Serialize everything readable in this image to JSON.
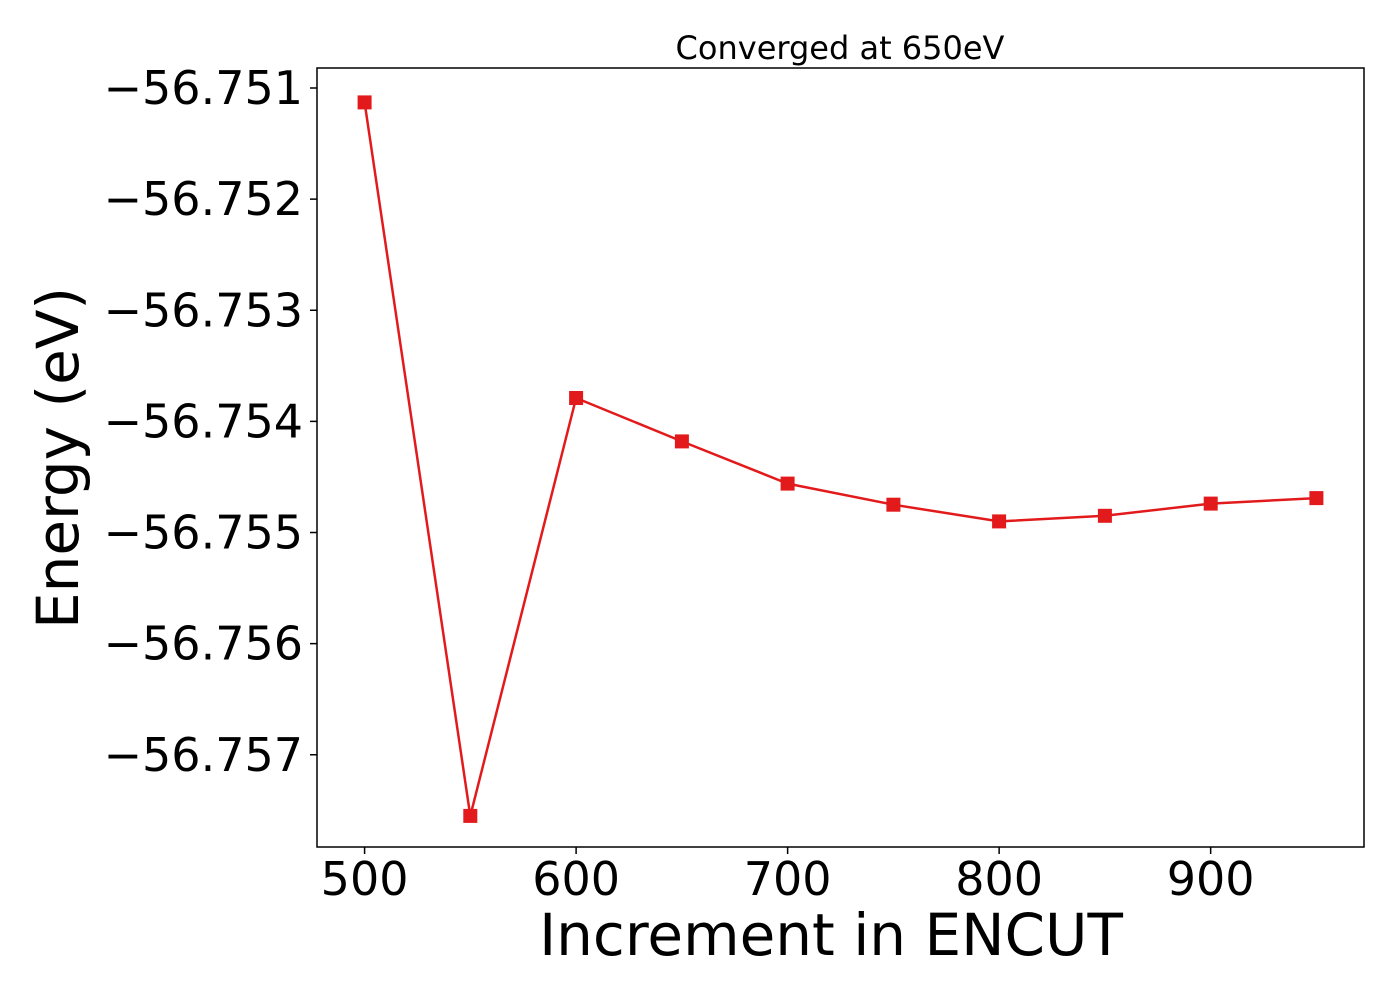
{
  "chart_data": {
    "type": "line",
    "title": "Converged at 650eV",
    "xlabel": "Increment in ENCUT",
    "ylabel": "Energy (eV)",
    "x": [
      500,
      550,
      600,
      650,
      700,
      750,
      800,
      850,
      900,
      950
    ],
    "series": [
      {
        "values": [
          -56.75113,
          -56.75755,
          -56.75379,
          -56.75418,
          -56.75456,
          -56.75475,
          -56.7549,
          -56.75485,
          -56.75474,
          -56.75469
        ],
        "color": "#e31a1c",
        "marker": "square"
      }
    ],
    "xlim": [
      477.5,
      972.5
    ],
    "ylim": [
      -56.75783,
      -56.75082
    ],
    "xticks": [
      500,
      600,
      700,
      800,
      900
    ],
    "xtick_labels": [
      "500",
      "600",
      "700",
      "800",
      "900"
    ],
    "yticks": [
      -56.751,
      -56.752,
      -56.753,
      -56.754,
      -56.755,
      -56.756,
      -56.757
    ],
    "ytick_labels": [
      "−56.751",
      "−56.752",
      "−56.753",
      "−56.754",
      "−56.755",
      "−56.756",
      "−56.757"
    ],
    "grid": false,
    "legend": "none"
  }
}
